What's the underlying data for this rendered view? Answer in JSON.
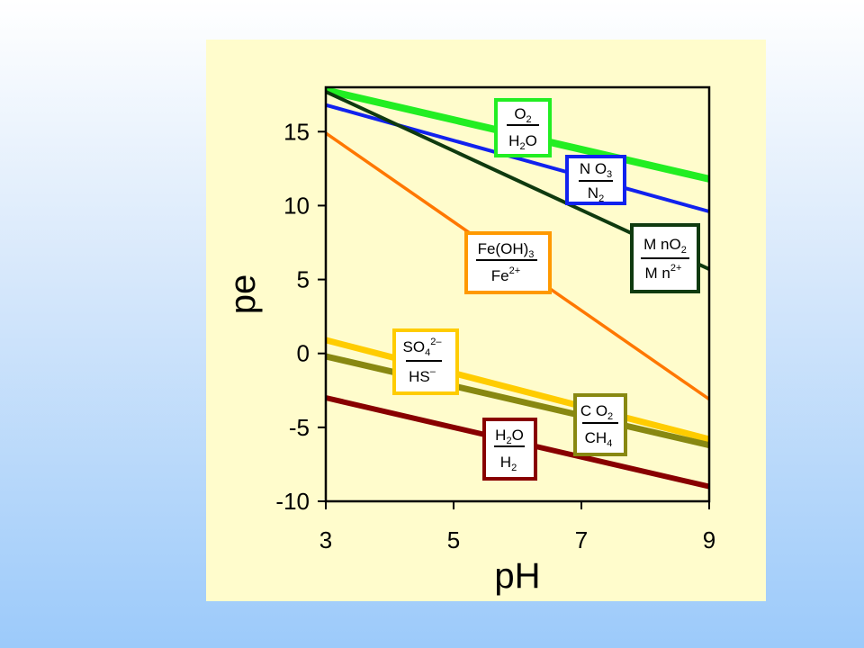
{
  "chart_data": {
    "type": "line",
    "xlabel": "pH",
    "ylabel": "pe",
    "xlim": [
      3,
      9
    ],
    "ylim": [
      -10,
      18
    ],
    "xticks": [
      3,
      5,
      7,
      9
    ],
    "yticks": [
      15,
      10,
      5,
      0,
      -5,
      -10
    ],
    "grid": false,
    "series": [
      {
        "name": "O2/H2O",
        "color": "#22ee22",
        "x": [
          3,
          9
        ],
        "y": [
          17.8,
          11.8
        ]
      },
      {
        "name": "NO3/N2",
        "color": "#1122ee",
        "x": [
          3,
          9
        ],
        "y": [
          16.8,
          9.6
        ]
      },
      {
        "name": "MnO2/Mn2+",
        "color": "#0f3a0f",
        "x": [
          3,
          9
        ],
        "y": [
          17.7,
          5.7
        ]
      },
      {
        "name": "Fe(OH)3/Fe2+",
        "color": "#ff7700",
        "x": [
          3,
          9
        ],
        "y": [
          14.9,
          -3.1
        ]
      },
      {
        "name": "SO4 2-/HS-",
        "color": "#ffcc00",
        "x": [
          3,
          9
        ],
        "y": [
          0.9,
          -5.8
        ]
      },
      {
        "name": "CO2/CH4",
        "color": "#888811",
        "x": [
          3,
          9
        ],
        "y": [
          -0.2,
          -6.2
        ]
      },
      {
        "name": "H2O/H2",
        "color": "#880000",
        "x": [
          3,
          9
        ],
        "y": [
          -3.0,
          -9.0
        ]
      }
    ],
    "labels": {
      "o2": {
        "num_main": "O",
        "num_sub": "2",
        "den_main": "H",
        "den_sub": "2",
        "den_rest": "O",
        "color": "#22ee22"
      },
      "no3": {
        "num_main": "N O",
        "num_sub": "3",
        "den_main": "N",
        "den_sub": "2",
        "color": "#1122ee"
      },
      "mno2": {
        "num_main": "M nO",
        "num_sub": "2",
        "den_main": "M n",
        "den_sup": "2+",
        "color": "#0f3a0f"
      },
      "feoh": {
        "num_main": "Fe(OH)",
        "num_sub": "3",
        "den_main": "Fe",
        "den_sup": "2+",
        "color": "#ff9900"
      },
      "so4": {
        "num_main": "SO",
        "num_sub": "4",
        "num_sup": "2–",
        "den_main": "HS",
        "den_sup": "–",
        "color": "#ffcc00"
      },
      "co2": {
        "num_main": "C O",
        "num_sub": "2",
        "den_main": "CH",
        "den_sub": "4",
        "color": "#888811"
      },
      "h2o": {
        "num_main": "H",
        "num_sub": "2",
        "num_rest": "O",
        "den_main": "H",
        "den_sub": "2",
        "color": "#880000"
      }
    }
  }
}
